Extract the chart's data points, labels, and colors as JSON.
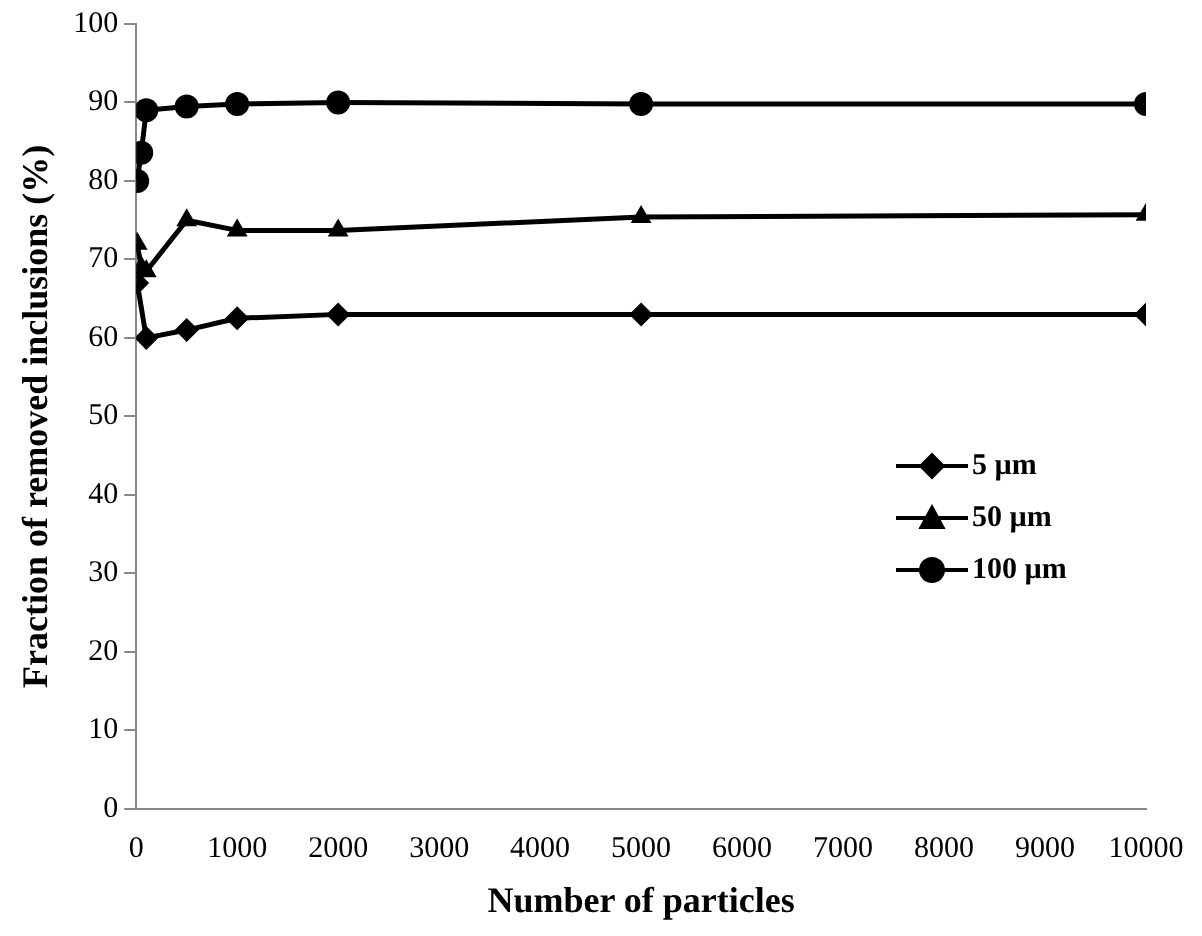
{
  "chart_data": {
    "type": "line",
    "xlabel": "Number of particles",
    "ylabel": "Fraction of removed inclusions (%)",
    "xlim": [
      0,
      10000
    ],
    "xticks": [
      0,
      1000,
      2000,
      3000,
      4000,
      5000,
      6000,
      7000,
      8000,
      9000,
      10000
    ],
    "ylim": [
      0,
      100
    ],
    "yticks": [
      0,
      10,
      20,
      30,
      40,
      50,
      60,
      70,
      80,
      90,
      100
    ],
    "grid": false,
    "legend": "right",
    "line_style": "solid",
    "series": [
      {
        "name": "5 µm",
        "color": "#000000",
        "marker": "diamond",
        "x": [
          10,
          100,
          500,
          1000,
          2000,
          5000,
          10000
        ],
        "values": [
          67,
          60,
          61,
          62.5,
          63,
          63,
          63
        ]
      },
      {
        "name": "50 µm",
        "color": "#000000",
        "marker": "triangle",
        "x": [
          10,
          50,
          100,
          500,
          1000,
          2000,
          5000,
          10000
        ],
        "values": [
          72,
          69,
          68.5,
          75,
          73.7,
          73.7,
          75.4,
          75.7
        ]
      },
      {
        "name": "100 µm",
        "color": "#000000",
        "marker": "circle",
        "x": [
          10,
          50,
          100,
          500,
          1000,
          2000,
          5000,
          10000
        ],
        "values": [
          80,
          83.6,
          89,
          89.5,
          89.8,
          90,
          89.8,
          89.8
        ]
      }
    ]
  }
}
